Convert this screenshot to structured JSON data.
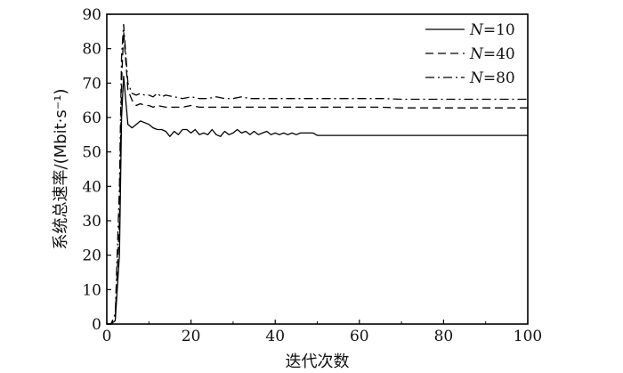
{
  "chart_data": {
    "type": "line",
    "xlabel": "迭代次数",
    "ylabel": "系统总速率/(Mbit·s⁻¹)",
    "xlim": [
      0,
      100
    ],
    "ylim": [
      0,
      90
    ],
    "x_ticks": [
      0,
      20,
      40,
      60,
      80,
      100
    ],
    "y_ticks": [
      0,
      10,
      20,
      30,
      40,
      50,
      60,
      70,
      80,
      90
    ],
    "grid": false,
    "legend_position": "top-right",
    "series": [
      {
        "name": "N=10",
        "legend_var": "N",
        "legend_value": "=10",
        "style": "solid",
        "x": [
          0,
          1,
          2,
          3,
          3.5,
          4,
          5,
          6,
          7,
          8,
          9,
          10,
          11,
          12,
          13,
          14,
          15,
          16,
          17,
          18,
          19,
          20,
          21,
          22,
          23,
          24,
          25,
          26,
          27,
          28,
          29,
          30,
          31,
          32,
          33,
          34,
          35,
          36,
          37,
          38,
          39,
          40,
          41,
          42,
          43,
          44,
          45,
          46,
          47,
          48,
          49,
          50,
          60,
          70,
          80,
          90,
          100
        ],
        "y": [
          0,
          0,
          1,
          20,
          60,
          72,
          58,
          57,
          58,
          59,
          58.5,
          58,
          57,
          56.5,
          56.5,
          56,
          54.5,
          56,
          55,
          56.5,
          56.5,
          55.5,
          56.5,
          55,
          55.5,
          55,
          56.5,
          55,
          54.5,
          56,
          55,
          55.5,
          56.5,
          55.5,
          56,
          55,
          56,
          55,
          55.5,
          56,
          55,
          55.5,
          55,
          55.5,
          55,
          55.5,
          55,
          55.5,
          55.5,
          55.5,
          55.5,
          54.8,
          54.8,
          54.8,
          54.8,
          54.8,
          54.8
        ]
      },
      {
        "name": "N=40",
        "legend_var": "N",
        "legend_value": "=40",
        "style": "dashed",
        "x": [
          0,
          1,
          2,
          3,
          3.5,
          4,
          5,
          6,
          7,
          8,
          9,
          10,
          11,
          12,
          14,
          16,
          18,
          20,
          22,
          24,
          26,
          28,
          30,
          32,
          34,
          36,
          38,
          40,
          42,
          44,
          46,
          48,
          50,
          55,
          60,
          65,
          70,
          80,
          90,
          100
        ],
        "y": [
          0,
          0,
          2,
          30,
          70,
          85,
          68,
          65,
          63.5,
          64,
          63.5,
          63.5,
          63,
          63.5,
          63,
          63,
          63,
          63.5,
          63,
          63,
          63,
          63,
          63,
          63,
          63,
          63,
          63,
          63,
          63,
          63,
          63,
          63,
          63,
          63,
          63,
          63,
          62.8,
          62.8,
          62.8,
          62.8
        ]
      },
      {
        "name": "N=80",
        "legend_var": "N",
        "legend_value": "=80",
        "style": "dashdot",
        "x": [
          0,
          1,
          2,
          3,
          3.5,
          4,
          5,
          6,
          7,
          8,
          9,
          10,
          11,
          12,
          13,
          14,
          16,
          18,
          20,
          22,
          24,
          26,
          28,
          30,
          32,
          34,
          36,
          38,
          40,
          42,
          44,
          46,
          48,
          50,
          55,
          60,
          64,
          66,
          70,
          80,
          90,
          100
        ],
        "y": [
          0,
          0,
          3,
          40,
          78,
          87,
          70,
          67,
          66.5,
          67,
          66.5,
          66.5,
          66,
          67,
          66,
          66.5,
          66,
          65.5,
          66,
          65.5,
          65.5,
          66,
          65.5,
          65.5,
          66,
          65.5,
          65.5,
          65.5,
          65.5,
          65.5,
          65.5,
          65.5,
          65.5,
          65.5,
          65.5,
          65.5,
          65.5,
          65.5,
          65.3,
          65.3,
          65.3,
          65.3
        ]
      }
    ]
  }
}
